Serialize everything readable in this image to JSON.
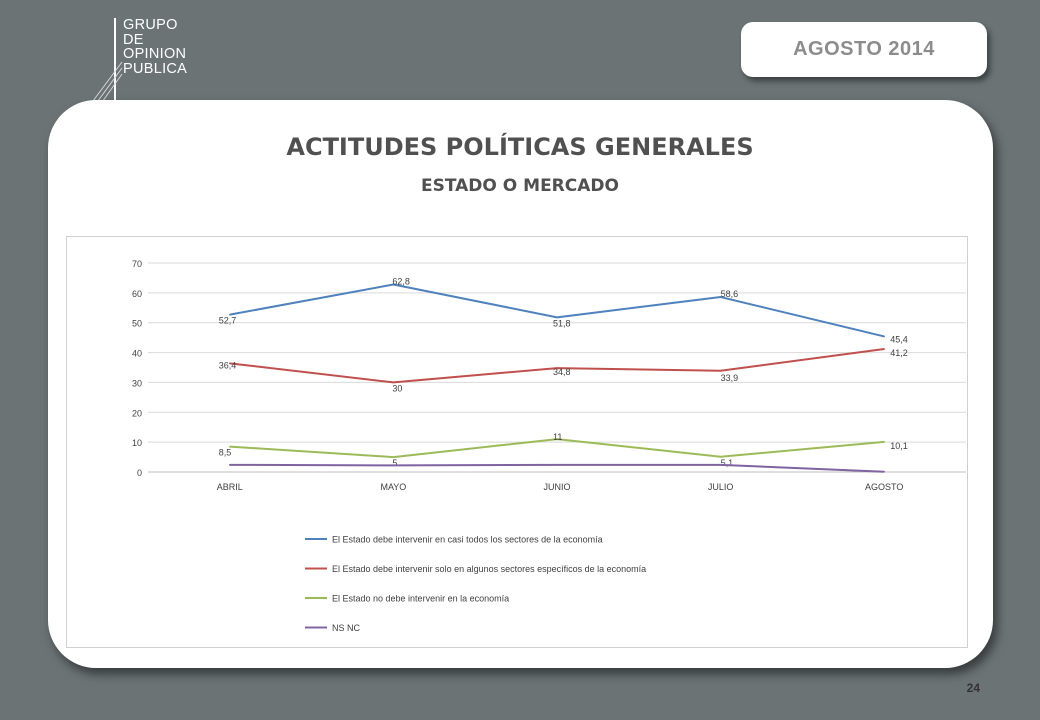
{
  "header": {
    "logo_lines": [
      "GRUPO",
      "DE",
      "OPINION",
      "PUBLICA"
    ],
    "date_badge": "AGOSTO  2014"
  },
  "slide": {
    "title": "ACTITUDES POLÍTICAS GENERALES",
    "subtitle": "ESTADO O MERCADO",
    "page_number": "24"
  },
  "chart_data": {
    "type": "line",
    "categories": [
      "ABRIL",
      "MAYO",
      "JUNIO",
      "JULIO",
      "AGOSTO"
    ],
    "ylim": [
      0,
      70
    ],
    "yticks": [
      0,
      10,
      20,
      30,
      40,
      50,
      60,
      70
    ],
    "grid": true,
    "legend_position": "bottom",
    "series": [
      {
        "name": "El Estado debe intervenir en casi todos los sectores de la economía",
        "color": "#4f81bd",
        "values": [
          52.7,
          62.8,
          51.8,
          58.6,
          45.4
        ],
        "labels": [
          "52,7",
          "62,8",
          "51,8",
          "58,6",
          "45,4"
        ]
      },
      {
        "name": "El Estado debe intervenir solo en algunos sectores específicos de la economía",
        "color": "#c0504d",
        "values": [
          36.4,
          30,
          34.8,
          33.9,
          41.2
        ],
        "labels": [
          "36,4",
          "30",
          "34,8",
          "33,9",
          "41,2"
        ]
      },
      {
        "name": "El Estado no debe intervenir en la economía",
        "color": "#9bbb59",
        "values": [
          8.5,
          5,
          11,
          5.1,
          10.1
        ],
        "labels": [
          "8,5",
          "5",
          "11",
          "5,1",
          "10,1"
        ]
      },
      {
        "name": "NS NC",
        "color": "#8064a2",
        "values": [
          2.4,
          2.2,
          2.4,
          2.4,
          0.1
        ],
        "labels": []
      }
    ]
  }
}
